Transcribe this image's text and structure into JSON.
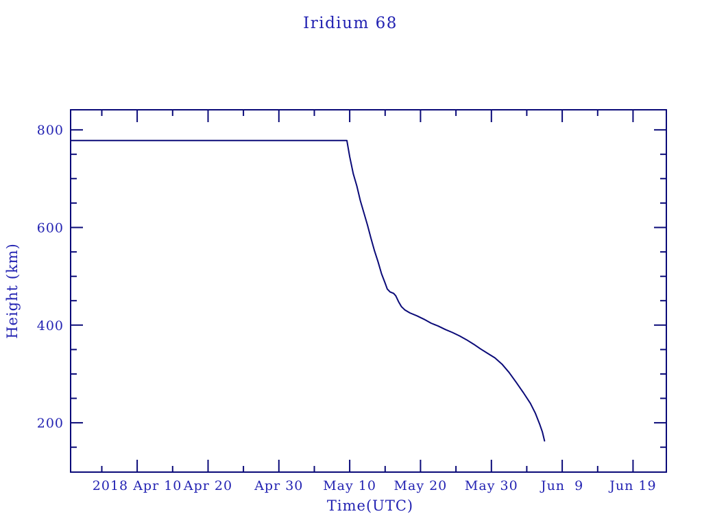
{
  "chart_data": {
    "type": "line",
    "title": "Iridium 68",
    "xlabel": "Time(UTC)",
    "ylabel": "Height (km)",
    "x_unit": "days since 2018-03-31 00:00 UTC",
    "xlim": [
      0.6,
      84.7
    ],
    "ylim": [
      99,
      841
    ],
    "grid": false,
    "legend": null,
    "x_major_ticks": [
      {
        "value": 10,
        "label": "2018 Apr 10"
      },
      {
        "value": 20,
        "label": "Apr 20"
      },
      {
        "value": 30,
        "label": "Apr 30"
      },
      {
        "value": 40,
        "label": "May 10"
      },
      {
        "value": 50,
        "label": "May 20"
      },
      {
        "value": 60,
        "label": "May 30"
      },
      {
        "value": 70,
        "label": "Jun  9"
      },
      {
        "value": 80,
        "label": "Jun 19"
      }
    ],
    "x_minor_ticks": [
      5,
      15,
      25,
      35,
      45,
      55,
      65,
      75
    ],
    "y_major_ticks": [
      {
        "value": 200,
        "label": "200"
      },
      {
        "value": 400,
        "label": "400"
      },
      {
        "value": 600,
        "label": "600"
      },
      {
        "value": 800,
        "label": "800"
      }
    ],
    "y_minor_ticks": [
      150,
      250,
      300,
      350,
      450,
      500,
      550,
      650,
      700,
      750
    ],
    "colors": {
      "line": "#0a0a78",
      "frame": "#0a0a78",
      "text": "#2222b2",
      "background": "#ffffff"
    },
    "series": [
      {
        "name": "Iridium 68 height",
        "points": [
          [
            0.6,
            778
          ],
          [
            10,
            778
          ],
          [
            20,
            778
          ],
          [
            30,
            778
          ],
          [
            39.6,
            778
          ],
          [
            40.0,
            745
          ],
          [
            40.5,
            710
          ],
          [
            41.0,
            685
          ],
          [
            41.5,
            655
          ],
          [
            42.0,
            630
          ],
          [
            42.5,
            605
          ],
          [
            43.0,
            578
          ],
          [
            43.5,
            552
          ],
          [
            44.0,
            530
          ],
          [
            44.5,
            505
          ],
          [
            45.0,
            486
          ],
          [
            45.3,
            474
          ],
          [
            45.7,
            468
          ],
          [
            46.2,
            465
          ],
          [
            46.5,
            460
          ],
          [
            46.9,
            448
          ],
          [
            47.3,
            438
          ],
          [
            47.8,
            431
          ],
          [
            48.5,
            425
          ],
          [
            49.5,
            419
          ],
          [
            50.5,
            412
          ],
          [
            51.5,
            404
          ],
          [
            52.5,
            398
          ],
          [
            53.5,
            391
          ],
          [
            54.5,
            385
          ],
          [
            55.5,
            378
          ],
          [
            56.5,
            370
          ],
          [
            57.5,
            361
          ],
          [
            58.5,
            351
          ],
          [
            59.5,
            342
          ],
          [
            60.5,
            333
          ],
          [
            61.5,
            320
          ],
          [
            62.5,
            303
          ],
          [
            63.5,
            283
          ],
          [
            64.5,
            262
          ],
          [
            65.5,
            240
          ],
          [
            66.2,
            220
          ],
          [
            66.8,
            198
          ],
          [
            67.2,
            181
          ],
          [
            67.5,
            163
          ]
        ]
      }
    ]
  }
}
